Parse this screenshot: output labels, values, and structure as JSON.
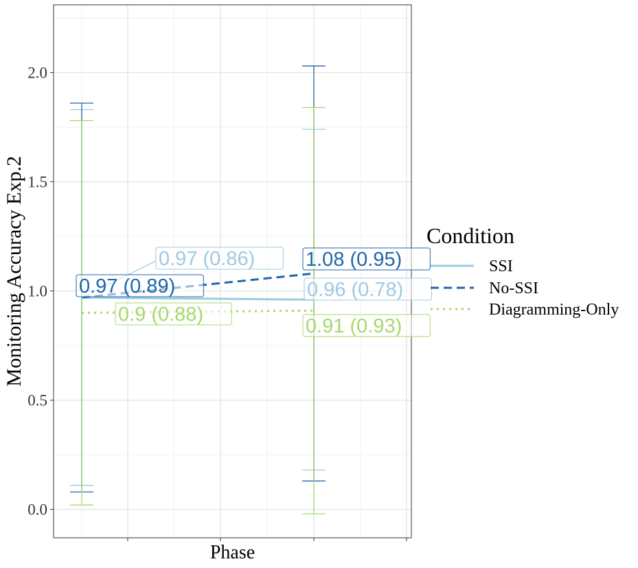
{
  "chart_data": {
    "type": "line",
    "title": "",
    "xlabel": "Phase",
    "ylabel": "Monitoring Accuracy Exp.2",
    "ylim": [
      -0.13,
      2.31
    ],
    "yticks": [
      0.0,
      0.5,
      1.0,
      1.5,
      2.0
    ],
    "ytick_labels": [
      "0.0",
      "0.5",
      "1.0",
      "1.5",
      "2.0"
    ],
    "grid": true,
    "legend_title": "Condition",
    "legend_position": "right",
    "colors": {
      "SSI": "#9ecae1",
      "No-SSI": "#2166ac",
      "Diagramming-Only": "#a6d96a"
    },
    "series": [
      {
        "name": "SSI",
        "line_style": "solid",
        "values": [
          0.97,
          0.96
        ],
        "error_low": [
          0.11,
          0.18
        ],
        "error_high": [
          1.83,
          1.74
        ],
        "labels": [
          "0.97 (0.86)",
          "0.96 (0.78)"
        ]
      },
      {
        "name": "No-SSI",
        "line_style": "dashed",
        "values": [
          0.97,
          1.08
        ],
        "error_low": [
          0.08,
          0.13
        ],
        "error_high": [
          1.86,
          2.03
        ],
        "labels": [
          "0.97 (0.89)",
          "1.08 (0.95)"
        ]
      },
      {
        "name": "Diagramming-Only",
        "line_style": "dotted",
        "values": [
          0.9,
          0.91
        ],
        "error_low": [
          0.02,
          -0.02
        ],
        "error_high": [
          1.78,
          1.84
        ],
        "labels": [
          "0.9 (0.88)",
          "0.91 (0.93)"
        ]
      }
    ]
  }
}
